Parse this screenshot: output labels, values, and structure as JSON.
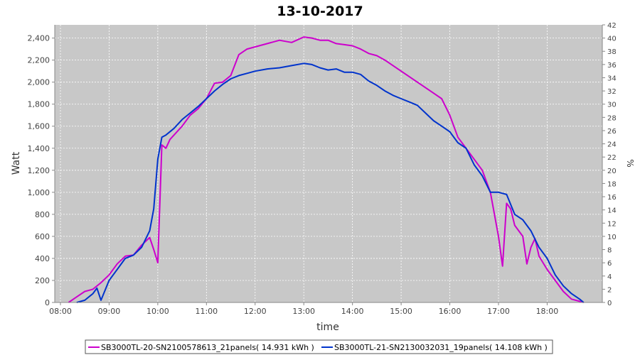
{
  "chart_data": {
    "type": "line",
    "title": "13-10-2017",
    "xlabel": "time",
    "ylabel": "Watt",
    "y2label": "%",
    "xlim": [
      "07:53",
      "19:08"
    ],
    "ylim": [
      0,
      2520
    ],
    "y2lim": [
      0,
      42
    ],
    "x_ticks": [
      "08:00",
      "09:00",
      "10:00",
      "11:00",
      "12:00",
      "13:00",
      "14:00",
      "15:00",
      "16:00",
      "17:00",
      "18:00"
    ],
    "y_ticks": [
      0,
      200,
      400,
      600,
      800,
      1000,
      1200,
      1400,
      1600,
      1800,
      2000,
      2200,
      2400
    ],
    "y_tick_labels": [
      "0",
      "200",
      "400",
      "600",
      "800",
      "1,000",
      "1,200",
      "1,400",
      "1,600",
      "1,800",
      "2,000",
      "2,200",
      "2,400"
    ],
    "y2_ticks": [
      0,
      2,
      4,
      6,
      8,
      10,
      12,
      14,
      16,
      18,
      20,
      22,
      24,
      26,
      28,
      30,
      32,
      34,
      36,
      38,
      40,
      42
    ],
    "grid": true,
    "plot_background": "#c8c8c8",
    "legend_position": "bottom",
    "series": [
      {
        "name": "SB3000TL-20-SN2100578613_21panels( 14.931 kWh )",
        "color": "#cc00cc",
        "x": [
          "08:10",
          "08:20",
          "08:30",
          "08:40",
          "08:50",
          "09:00",
          "09:10",
          "09:20",
          "09:30",
          "09:40",
          "09:50",
          "09:55",
          "10:00",
          "10:05",
          "10:10",
          "10:15",
          "10:30",
          "10:40",
          "10:50",
          "11:00",
          "11:10",
          "11:20",
          "11:30",
          "11:40",
          "11:50",
          "12:00",
          "12:15",
          "12:30",
          "12:45",
          "13:00",
          "13:10",
          "13:20",
          "13:30",
          "13:40",
          "13:50",
          "14:00",
          "14:10",
          "14:20",
          "14:30",
          "14:40",
          "14:50",
          "15:00",
          "15:10",
          "15:20",
          "15:30",
          "15:40",
          "15:50",
          "16:00",
          "16:10",
          "16:20",
          "16:30",
          "16:40",
          "16:50",
          "17:00",
          "17:05",
          "17:10",
          "17:15",
          "17:20",
          "17:30",
          "17:35",
          "17:40",
          "17:45",
          "17:50",
          "18:00",
          "18:10",
          "18:20",
          "18:30",
          "18:40",
          "18:45"
        ],
        "values": [
          0,
          50,
          100,
          120,
          180,
          250,
          350,
          420,
          430,
          520,
          590,
          480,
          360,
          1430,
          1400,
          1480,
          1600,
          1700,
          1760,
          1850,
          1990,
          2000,
          2060,
          2250,
          2300,
          2320,
          2350,
          2380,
          2360,
          2410,
          2400,
          2380,
          2380,
          2350,
          2340,
          2330,
          2300,
          2260,
          2240,
          2200,
          2150,
          2100,
          2050,
          2000,
          1950,
          1900,
          1850,
          1700,
          1500,
          1400,
          1300,
          1200,
          1000,
          600,
          330,
          900,
          850,
          700,
          600,
          350,
          500,
          580,
          420,
          300,
          200,
          100,
          30,
          10,
          0
        ]
      },
      {
        "name": "SB3000TL-21-SN2130032031_19panels( 14.108 kWh )",
        "color": "#0033cc",
        "x": [
          "08:20",
          "08:30",
          "08:40",
          "08:45",
          "08:50",
          "09:00",
          "09:10",
          "09:20",
          "09:30",
          "09:40",
          "09:50",
          "09:55",
          "10:00",
          "10:05",
          "10:10",
          "10:20",
          "10:30",
          "10:40",
          "10:50",
          "11:00",
          "11:10",
          "11:20",
          "11:30",
          "11:40",
          "11:50",
          "12:00",
          "12:15",
          "12:30",
          "12:45",
          "13:00",
          "13:10",
          "13:20",
          "13:30",
          "13:40",
          "13:50",
          "14:00",
          "14:10",
          "14:20",
          "14:30",
          "14:40",
          "14:50",
          "15:00",
          "15:10",
          "15:20",
          "15:30",
          "15:40",
          "15:50",
          "16:00",
          "16:10",
          "16:20",
          "16:30",
          "16:40",
          "16:50",
          "17:00",
          "17:10",
          "17:20",
          "17:30",
          "17:40",
          "17:50",
          "18:00",
          "18:10",
          "18:20",
          "18:30",
          "18:40",
          "18:45"
        ],
        "values": [
          0,
          20,
          80,
          130,
          20,
          200,
          300,
          400,
          430,
          500,
          650,
          850,
          1300,
          1500,
          1520,
          1580,
          1660,
          1720,
          1780,
          1850,
          1920,
          1980,
          2030,
          2060,
          2080,
          2100,
          2120,
          2130,
          2150,
          2170,
          2160,
          2130,
          2110,
          2120,
          2090,
          2090,
          2070,
          2010,
          1970,
          1920,
          1880,
          1850,
          1820,
          1790,
          1720,
          1650,
          1600,
          1550,
          1450,
          1400,
          1250,
          1150,
          1000,
          1000,
          980,
          800,
          750,
          650,
          500,
          400,
          250,
          150,
          80,
          30,
          0
        ]
      }
    ]
  }
}
